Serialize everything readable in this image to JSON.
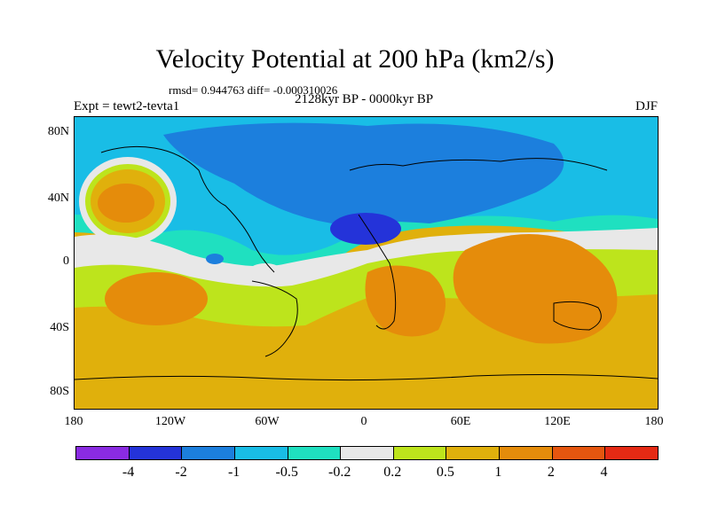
{
  "title": "Velocity Potential at 200 hPa (km2/s)",
  "stats": "rmsd= 0.944763  diff= -0.000310026",
  "experiment": "Expt = tewt2-tevta1",
  "period": "2128kyr BP - 0000kyr BP",
  "season": "DJF",
  "lat_labels": [
    "80N",
    "40N",
    "0",
    "40S",
    "80S"
  ],
  "lon_labels": [
    "180",
    "120W",
    "60W",
    "0",
    "60E",
    "120E",
    "180"
  ],
  "colorbar": {
    "colors": [
      "#8a2be2",
      "#2433d9",
      "#1c7fdd",
      "#19bde6",
      "#1fe0c0",
      "#e8e8e8",
      "#bde41c",
      "#e0b00c",
      "#e58c0b",
      "#e5560f",
      "#e52a14"
    ],
    "labels": [
      "-4",
      "-2",
      "-1",
      "-0.5",
      "-0.2",
      "0.2",
      "0.5",
      "1",
      "2",
      "4"
    ]
  }
}
